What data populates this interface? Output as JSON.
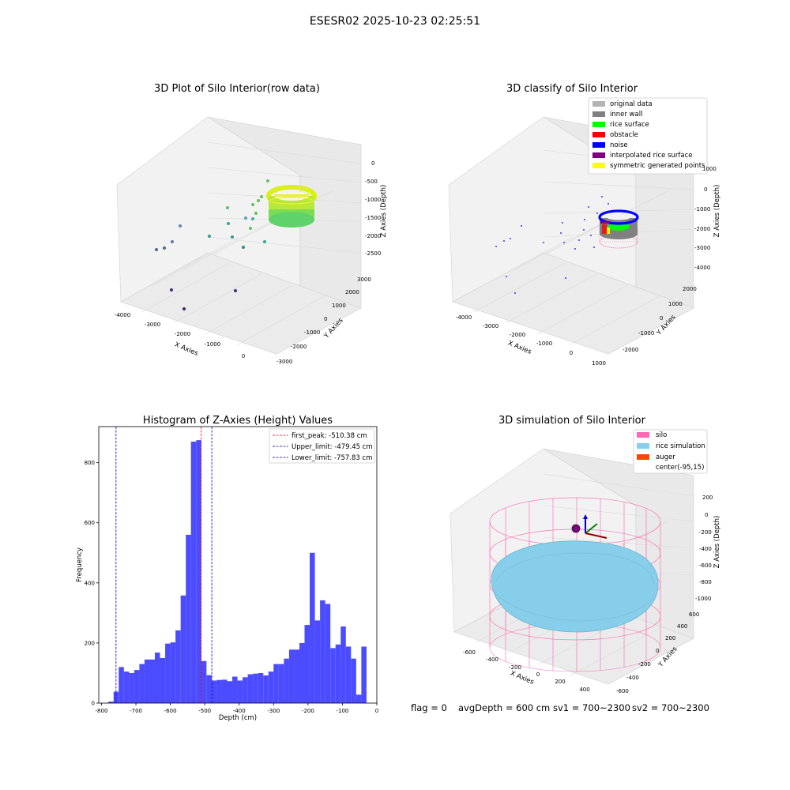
{
  "suptitle": "ESESR02 2025-10-23 02:25:51",
  "colors": {
    "hist_bar": "#4b4bff",
    "first_peak": "#ff0000",
    "limits": "#0000cc",
    "silo": "#ff69b4",
    "rice": "#87ceeb",
    "auger": "#ff4500",
    "gray": "#808080",
    "light_gray": "#b3b3b3",
    "green": "#00ff00",
    "red": "#ff0000",
    "blue": "#0000ff",
    "purple": "#800080",
    "yellow": "#ffff00"
  },
  "panel_raw": {
    "title": "3D Plot of Silo Interior(row data)",
    "xlabel": "X Axies",
    "ylabel": "Y Axies",
    "zlabel": "Z Axies (Depth)",
    "xticks": [
      "-4000",
      "-3000",
      "-2000",
      "-1000",
      "0"
    ],
    "yticks": [
      "-3000",
      "-2000",
      "-1000",
      "0",
      "1000",
      "2000",
      "3000"
    ],
    "zticks": [
      "0",
      "-500",
      "-1000",
      "-1500",
      "-2000",
      "-2500"
    ]
  },
  "panel_classify": {
    "title": "3D classify of Silo Interior",
    "xlabel": "X Axies",
    "ylabel": "Y Axies",
    "zlabel": "Z Axies (Depth)",
    "xticks": [
      "-4000",
      "-3000",
      "-2000",
      "-1000",
      "0",
      "1000"
    ],
    "yticks": [
      "-2000",
      "-1000",
      "0",
      "1000",
      "2000"
    ],
    "zticks": [
      "1000",
      "0",
      "-1000",
      "-2000",
      "-3000",
      "-4000"
    ],
    "legend": [
      {
        "label": "original data",
        "color": "#b3b3b3"
      },
      {
        "label": "inner wall",
        "color": "#808080"
      },
      {
        "label": "rice surface",
        "color": "#00ff00"
      },
      {
        "label": "obstacle",
        "color": "#ff0000"
      },
      {
        "label": "noise",
        "color": "#0000ff"
      },
      {
        "label": "interpolated rice surface",
        "color": "#800080"
      },
      {
        "label": "symmetric generated points",
        "color": "#ffff00"
      }
    ]
  },
  "panel_sim": {
    "title": "3D simulation of Silo Interior",
    "xlabel": "X Axies",
    "ylabel": "Y Axies",
    "zlabel": "Z Axies (Depth)",
    "xticks": [
      "-600",
      "-400",
      "-200",
      "0",
      "200",
      "400"
    ],
    "yticks": [
      "-600",
      "-400",
      "-200",
      "0",
      "200",
      "400",
      "600"
    ],
    "zticks": [
      "200",
      "0",
      "-200",
      "-400",
      "-600",
      "-800",
      "-1000"
    ],
    "legend": [
      {
        "label": "silo",
        "color": "#ff69b4"
      },
      {
        "label": "rice simulation",
        "color": "#87ceeb"
      },
      {
        "label": "auger",
        "color": "#ff4500"
      },
      {
        "label": "center(-95,15)",
        "color": ""
      }
    ]
  },
  "status": {
    "flag": "flag = 0",
    "avg": "avgDepth = 600 cm",
    "sv1": "sv1 = 700~2300",
    "sv2": "sv2 = 700~2300"
  },
  "chart_data": [
    {
      "type": "bar",
      "title": "Histogram of Z-Axies (Height) Values",
      "xlabel": "Depth (cm)",
      "ylabel": "Frequency",
      "xlim": [
        -808,
        0
      ],
      "ylim": [
        0,
        920
      ],
      "xticks": [
        -800,
        -700,
        -600,
        -500,
        -400,
        -300,
        -200,
        -100,
        0
      ],
      "yticks": [
        0,
        200,
        400,
        600,
        800
      ],
      "bin_start": -780,
      "bin_width": 15,
      "values": [
        5,
        38,
        120,
        105,
        100,
        110,
        130,
        145,
        145,
        168,
        150,
        198,
        202,
        242,
        358,
        560,
        870,
        875,
        140,
        93,
        75,
        77,
        78,
        73,
        88,
        75,
        86,
        96,
        98,
        100,
        92,
        105,
        130,
        130,
        148,
        178,
        178,
        200,
        260,
        500,
        275,
        342,
        330,
        183,
        195,
        255,
        188,
        148,
        28,
        188
      ],
      "vlines": [
        {
          "label": "first_peak: -510.38 cm",
          "x": -510.38,
          "color": "#ff0000"
        },
        {
          "label": "Upper_limit: -479.45 cm",
          "x": -479.45,
          "color": "#0000cc"
        },
        {
          "label": "Lower_limit: -757.83 cm",
          "x": -757.83,
          "color": "#0000cc"
        }
      ],
      "legend_position": "top-right"
    }
  ]
}
